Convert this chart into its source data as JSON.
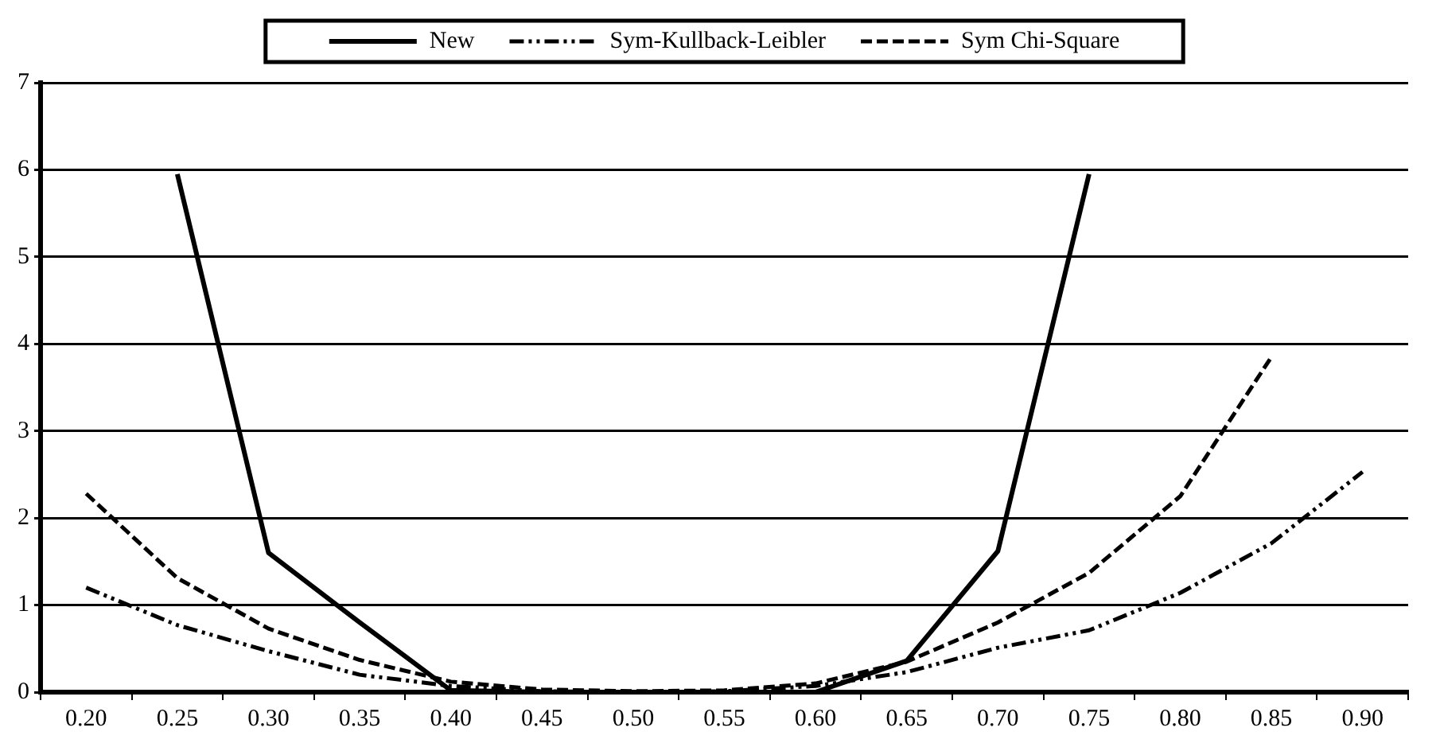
{
  "chart_data": {
    "type": "line",
    "categories": [
      "0.20",
      "0.25",
      "0.30",
      "0.35",
      "0.40",
      "0.45",
      "0.50",
      "0.55",
      "0.60",
      "0.65",
      "0.70",
      "0.75",
      "0.80",
      "0.85",
      "0.90"
    ],
    "series": [
      {
        "name": "New",
        "color": "#000000",
        "line_style": "solid",
        "values": [
          null,
          5.95,
          1.6,
          0.8,
          0.02,
          0,
          0,
          0,
          0,
          0.36,
          1.62,
          5.95,
          null,
          null,
          null
        ]
      },
      {
        "name": "Sym-Kullback-Leibler",
        "color": "#000000",
        "line_style": "dashdotdot",
        "values": [
          1.2,
          0.77,
          0.47,
          0.2,
          0.07,
          0.01,
          0,
          0.01,
          0.07,
          0.23,
          0.51,
          0.71,
          1.14,
          1.71,
          2.53
        ]
      },
      {
        "name": "Sym Chi-Square",
        "color": "#000000",
        "line_style": "dashed",
        "values": [
          2.28,
          1.31,
          0.73,
          0.37,
          0.12,
          0.03,
          0.01,
          0.02,
          0.1,
          0.35,
          0.8,
          1.37,
          2.25,
          3.85,
          null
        ]
      }
    ],
    "ylim": [
      0,
      7
    ],
    "yticks": [
      0,
      1,
      2,
      3,
      4,
      5,
      6,
      7
    ],
    "grid": "y",
    "legend": "top",
    "marker": "none"
  }
}
